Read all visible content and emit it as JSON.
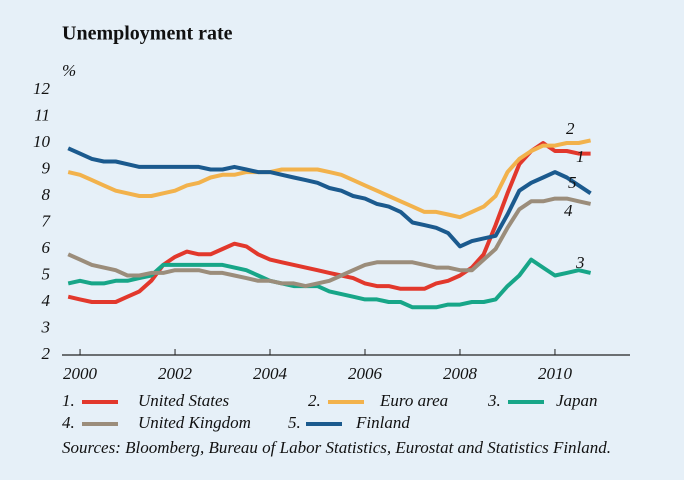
{
  "chart_data": {
    "type": "line",
    "title": "Unemployment rate",
    "y_unit": "%",
    "source": "Sources: Bloomberg, Bureau of Labor Statistics, Eurostat and Statistics Finland.",
    "xlim": [
      1999.62,
      2011.58
    ],
    "xticks": [
      2000,
      2002,
      2004,
      2006,
      2008,
      2010
    ],
    "ylim": [
      2,
      12
    ],
    "yticks": [
      2,
      3,
      4,
      5,
      6,
      7,
      8,
      9,
      10,
      11,
      12
    ],
    "grid": false,
    "x": [
      1999.75,
      2000,
      2000.25,
      2000.5,
      2000.75,
      2001,
      2001.25,
      2001.5,
      2001.75,
      2002,
      2002.25,
      2002.5,
      2002.75,
      2003,
      2003.25,
      2003.5,
      2003.75,
      2004,
      2004.25,
      2004.5,
      2004.75,
      2005,
      2005.25,
      2005.5,
      2005.75,
      2006,
      2006.25,
      2006.5,
      2006.75,
      2007,
      2007.25,
      2007.5,
      2007.75,
      2008,
      2008.25,
      2008.5,
      2008.75,
      2009,
      2009.25,
      2009.5,
      2009.75,
      2010,
      2010.25,
      2010.5,
      2010.75
    ],
    "series": [
      {
        "name": "United States",
        "legend_number": "1.",
        "end_label": "1",
        "color": "#e2382c",
        "values": [
          4.2,
          4.1,
          4.0,
          4.0,
          4.0,
          4.2,
          4.4,
          4.8,
          5.4,
          5.7,
          5.9,
          5.8,
          5.8,
          6.0,
          6.2,
          6.1,
          5.8,
          5.6,
          5.5,
          5.4,
          5.3,
          5.2,
          5.1,
          5.0,
          4.9,
          4.7,
          4.6,
          4.6,
          4.5,
          4.5,
          4.5,
          4.7,
          4.8,
          5.0,
          5.3,
          5.8,
          6.9,
          8.1,
          9.2,
          9.7,
          10.0,
          9.7,
          9.7,
          9.6,
          9.6
        ]
      },
      {
        "name": "Euro area",
        "legend_number": "2.",
        "end_label": "2",
        "color": "#f2b24c",
        "values": [
          8.9,
          8.8,
          8.6,
          8.4,
          8.2,
          8.1,
          8.0,
          8.0,
          8.1,
          8.2,
          8.4,
          8.5,
          8.7,
          8.8,
          8.8,
          8.9,
          8.9,
          8.9,
          9.0,
          9.0,
          9.0,
          9.0,
          8.9,
          8.8,
          8.6,
          8.4,
          8.2,
          8.0,
          7.8,
          7.6,
          7.4,
          7.4,
          7.3,
          7.2,
          7.4,
          7.6,
          8.0,
          8.9,
          9.4,
          9.7,
          9.9,
          9.9,
          10.0,
          10.0,
          10.1
        ]
      },
      {
        "name": "Japan",
        "legend_number": "3.",
        "end_label": "3",
        "color": "#17a688",
        "values": [
          4.7,
          4.8,
          4.7,
          4.7,
          4.8,
          4.8,
          4.9,
          5.0,
          5.4,
          5.4,
          5.4,
          5.4,
          5.4,
          5.4,
          5.3,
          5.2,
          5.0,
          4.8,
          4.7,
          4.6,
          4.6,
          4.6,
          4.4,
          4.3,
          4.2,
          4.1,
          4.1,
          4.0,
          4.0,
          3.8,
          3.8,
          3.8,
          3.9,
          3.9,
          4.0,
          4.0,
          4.1,
          4.6,
          5.0,
          5.6,
          5.3,
          5.0,
          5.1,
          5.2,
          5.1
        ]
      },
      {
        "name": "United Kingdom",
        "legend_number": "4.",
        "end_label": "4",
        "color": "#9b8d7b",
        "values": [
          5.8,
          5.6,
          5.4,
          5.3,
          5.2,
          5.0,
          5.0,
          5.1,
          5.1,
          5.2,
          5.2,
          5.2,
          5.1,
          5.1,
          5.0,
          4.9,
          4.8,
          4.8,
          4.7,
          4.7,
          4.6,
          4.7,
          4.8,
          5.0,
          5.2,
          5.4,
          5.5,
          5.5,
          5.5,
          5.5,
          5.4,
          5.3,
          5.3,
          5.2,
          5.2,
          5.6,
          6.0,
          6.8,
          7.5,
          7.8,
          7.8,
          7.9,
          7.9,
          7.8,
          7.7
        ]
      },
      {
        "name": "Finland",
        "legend_number": "5.",
        "end_label": "5",
        "color": "#1b5a8e",
        "values": [
          9.8,
          9.6,
          9.4,
          9.3,
          9.3,
          9.2,
          9.1,
          9.1,
          9.1,
          9.1,
          9.1,
          9.1,
          9.0,
          9.0,
          9.1,
          9.0,
          8.9,
          8.9,
          8.8,
          8.7,
          8.6,
          8.5,
          8.3,
          8.2,
          8.0,
          7.9,
          7.7,
          7.6,
          7.4,
          7.0,
          6.9,
          6.8,
          6.6,
          6.1,
          6.3,
          6.4,
          6.5,
          7.3,
          8.2,
          8.5,
          8.7,
          8.9,
          8.7,
          8.4,
          8.1
        ]
      }
    ]
  }
}
